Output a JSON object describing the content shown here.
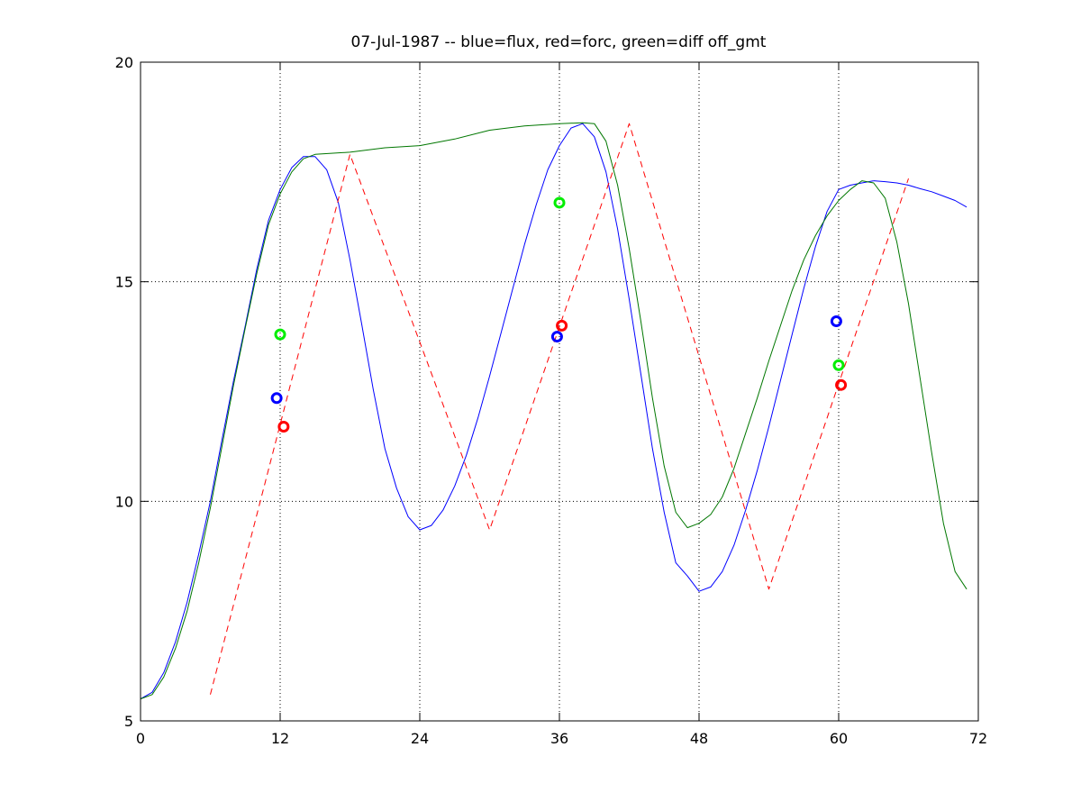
{
  "chart_data": {
    "type": "line",
    "title": "07-Jul-1987 -- blue=flux, red=forc, green=diff off_gmt",
    "xlabel": "",
    "ylabel": "",
    "xlim": [
      0,
      72
    ],
    "ylim": [
      5,
      20
    ],
    "xticks": [
      0,
      12,
      24,
      36,
      48,
      60,
      72
    ],
    "yticks": [
      5,
      10,
      15,
      20
    ],
    "x_tick_labels": [
      "0",
      "12",
      "24",
      "36",
      "48",
      "60",
      "72"
    ],
    "y_tick_labels": [
      "5",
      "10",
      "15",
      "20"
    ],
    "grid": "dotted",
    "series": [
      {
        "key": "flux",
        "color": "#0000ff",
        "style": "solid",
        "x": [
          0,
          1,
          2,
          3,
          4,
          5,
          6,
          7,
          8,
          9,
          10,
          11,
          12,
          13,
          14,
          15,
          16,
          17,
          18,
          19,
          20,
          21,
          22,
          23,
          24,
          25,
          26,
          27,
          28,
          29,
          30,
          31,
          32,
          33,
          34,
          35,
          36,
          37,
          38,
          39,
          40,
          41,
          42,
          43,
          44,
          45,
          46,
          47,
          48,
          49,
          50,
          51,
          52,
          53,
          54,
          55,
          56,
          57,
          58,
          59,
          60,
          61,
          62,
          63
        ],
        "y": [
          5.5,
          5.65,
          6.1,
          6.8,
          7.7,
          8.8,
          10.0,
          11.4,
          12.75,
          14.0,
          15.3,
          16.4,
          17.1,
          17.6,
          17.85,
          17.85,
          17.55,
          16.8,
          15.5,
          14.05,
          12.55,
          11.2,
          10.3,
          9.65,
          9.35,
          9.45,
          9.8,
          10.35,
          11.05,
          11.9,
          12.85,
          13.85,
          14.85,
          15.85,
          16.75,
          17.55,
          18.1,
          18.5,
          18.6,
          18.3,
          17.5,
          16.2,
          14.6,
          12.9,
          11.2,
          9.75,
          8.6,
          8.3,
          7.95,
          8.05,
          8.4,
          9.0,
          9.8,
          10.7,
          11.7,
          12.75,
          13.8,
          14.85,
          15.8,
          16.6,
          17.1,
          17.2,
          17.25,
          17.3
        ]
      },
      {
        "key": "forc",
        "color": "#ff0000",
        "style": "dashed",
        "x": [
          6,
          18,
          30,
          42,
          54,
          66
        ],
        "y": [
          5.6,
          17.9,
          9.35,
          18.6,
          8.0,
          17.35
        ]
      },
      {
        "key": "diff",
        "color": "#007700",
        "style": "solid",
        "x": [
          0,
          1,
          2,
          3,
          4,
          5,
          6,
          7,
          8,
          9,
          10,
          11,
          12,
          13,
          14,
          15,
          18,
          21,
          24,
          27,
          30,
          33,
          36,
          38,
          39,
          40,
          41,
          42,
          43,
          44,
          45,
          46,
          47,
          48,
          49,
          50,
          51,
          52,
          53,
          54,
          55,
          56,
          57,
          58,
          59,
          60,
          61,
          62,
          63,
          64,
          65,
          66,
          67,
          68,
          69,
          70,
          71
        ],
        "y": [
          5.5,
          5.6,
          6.0,
          6.65,
          7.5,
          8.6,
          9.85,
          11.25,
          12.65,
          13.95,
          15.2,
          16.3,
          17.0,
          17.5,
          17.8,
          17.9,
          17.95,
          18.05,
          18.1,
          18.25,
          18.45,
          18.55,
          18.6,
          18.62,
          18.6,
          18.2,
          17.2,
          15.75,
          14.1,
          12.35,
          10.8,
          9.75,
          9.4,
          9.5,
          9.7,
          10.1,
          10.75,
          11.55,
          12.35,
          13.2,
          14.0,
          14.8,
          15.5,
          16.05,
          16.5,
          16.85,
          17.1,
          17.3,
          17.25,
          16.9,
          15.9,
          14.5,
          12.8,
          11.1,
          9.5,
          8.4,
          8.0
        ]
      },
      {
        "key": "diff-tail",
        "color": "#0000ff",
        "style": "solid",
        "x": [
          63,
          64,
          65,
          66,
          67,
          68,
          69,
          70,
          71
        ],
        "y": [
          17.3,
          17.28,
          17.25,
          17.2,
          17.12,
          17.05,
          16.95,
          16.85,
          16.7
        ]
      }
    ],
    "markers": [
      {
        "x": 11.7,
        "y": 12.35,
        "color": "#0000ff"
      },
      {
        "x": 12.3,
        "y": 11.7,
        "color": "#ff0000"
      },
      {
        "x": 12.0,
        "y": 13.8,
        "color": "#00ee00"
      },
      {
        "x": 35.8,
        "y": 13.75,
        "color": "#0000ff"
      },
      {
        "x": 36.2,
        "y": 14.0,
        "color": "#ff0000"
      },
      {
        "x": 36.0,
        "y": 16.8,
        "color": "#00ee00"
      },
      {
        "x": 59.8,
        "y": 14.1,
        "color": "#0000ff"
      },
      {
        "x": 60.2,
        "y": 12.65,
        "color": "#ff0000"
      },
      {
        "x": 60.0,
        "y": 13.1,
        "color": "#00ee00"
      }
    ]
  }
}
